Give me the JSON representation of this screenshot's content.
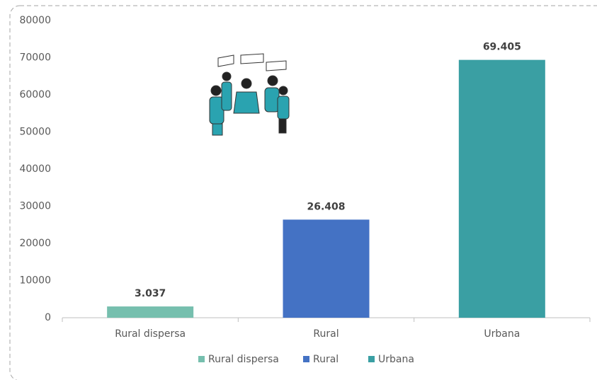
{
  "chart_data": {
    "type": "bar",
    "categories": [
      "Rural dispersa",
      "Rural",
      "Urbana"
    ],
    "series": [
      {
        "name": "Rural dispersa",
        "color": "#76bfae",
        "values": [
          3037,
          null,
          null
        ],
        "value_labels": [
          "3.037",
          null,
          null
        ]
      },
      {
        "name": "Rural",
        "color": "#4472c4",
        "values": [
          null,
          26408,
          null
        ],
        "value_labels": [
          null,
          "26.408",
          null
        ]
      },
      {
        "name": "Urbana",
        "color": "#3a9fa3",
        "values": [
          null,
          null,
          69405
        ],
        "value_labels": [
          null,
          null,
          "69.405"
        ]
      }
    ],
    "ylim": [
      0,
      80000
    ],
    "yticks": [
      0,
      10000,
      20000,
      30000,
      40000,
      50000,
      60000,
      70000,
      80000
    ],
    "grid": false,
    "legend": "bottom"
  }
}
